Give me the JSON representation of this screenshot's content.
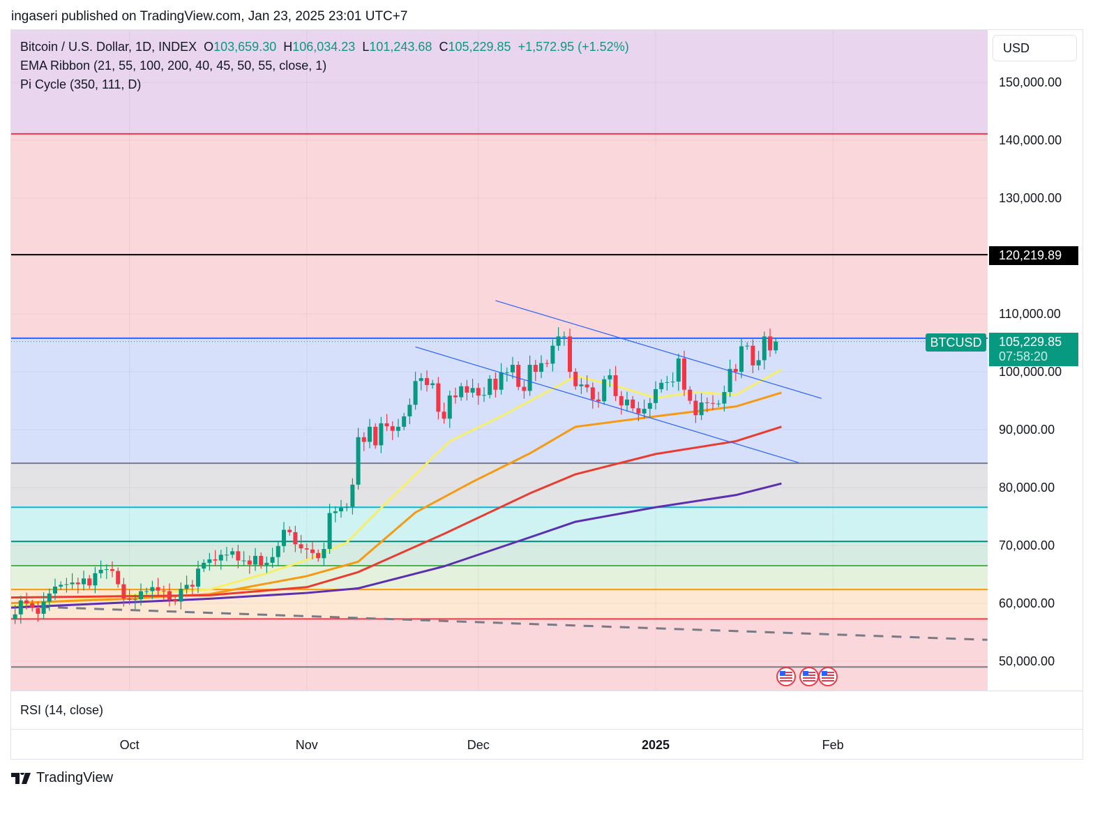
{
  "header": {
    "published": "ingaseri published on TradingView.com, Jan 23, 2025 23:01 UTC+7"
  },
  "legend": {
    "symbol": "Bitcoin / U.S. Dollar, 1D, INDEX",
    "o_label": "O",
    "o": "103,659.30",
    "h_label": "H",
    "h": "106,034.23",
    "l_label": "L",
    "l": "101,243.68",
    "c_label": "C",
    "c": "105,229.85",
    "change": "+1,572.95 (+1.52%)",
    "ema": "EMA Ribbon (21, 55, 100, 200, 40, 45, 50, 55, close, 1)",
    "pi": "Pi Cycle (350, 111, D)"
  },
  "currency": "USD",
  "rsi_label": "RSI (14, close)",
  "brand": "TradingView",
  "price_label": {
    "level": "120,219.89",
    "symbol": "BTCUSD",
    "price": "105,229.85",
    "countdown": "07:58:20"
  },
  "colors": {
    "up": "#089981",
    "down": "#f23645",
    "ema21": "#f7ef6a",
    "ema55": "#f59a12",
    "ema100": "#ea3b2f",
    "ema200": "#5b2fb0",
    "trend": "#2962ff"
  },
  "chart_data": {
    "type": "candlestick",
    "interval": "1D",
    "ylim": [
      45000,
      157000
    ],
    "y_ticks": [
      "150,000.00",
      "140,000.00",
      "130,000.00",
      "120,000.00",
      "110,000.00",
      "100,000.00",
      "90,000.00",
      "80,000.00",
      "70,000.00",
      "60,000.00",
      "50,000.00"
    ],
    "y_tick_values": [
      150000,
      140000,
      130000,
      120000,
      110000,
      100000,
      90000,
      80000,
      70000,
      60000,
      50000
    ],
    "x_ticks": [
      {
        "label": "Oct",
        "date": "2024-10-01"
      },
      {
        "label": "Nov",
        "date": "2024-11-01"
      },
      {
        "label": "Dec",
        "date": "2024-12-01"
      },
      {
        "label": "2025",
        "date": "2025-01-01",
        "bold": true
      },
      {
        "label": "Feb",
        "date": "2025-02-01"
      }
    ],
    "start_date": "2024-09-09",
    "first_open": 58000,
    "closes": [
      57600,
      57300,
      58100,
      60500,
      60000,
      59200,
      58200,
      60300,
      61700,
      62900,
      63200,
      63300,
      63600,
      63300,
      64300,
      63100,
      65200,
      65800,
      65900,
      65600,
      63300,
      60800,
      60600,
      60700,
      62100,
      62100,
      62800,
      62200,
      62100,
      60600,
      60300,
      62500,
      63200,
      62900,
      66000,
      67000,
      67600,
      67400,
      68400,
      68400,
      69000,
      67400,
      67400,
      66700,
      68200,
      66600,
      67000,
      68000,
      69900,
      72700,
      72300,
      70200,
      69500,
      69300,
      68700,
      67800,
      69400,
      75600,
      75900,
      76500,
      76700,
      80500,
      88700,
      87900,
      90500,
      87300,
      91100,
      90600,
      89800,
      90500,
      92300,
      94300,
      98400,
      98900,
      97700,
      98000,
      93100,
      91900,
      95900,
      95600,
      97500,
      96400,
      97200,
      95900,
      96000,
      98800,
      96900,
      99900,
      99900,
      101200,
      97400,
      96700,
      101200,
      100000,
      101500,
      101400,
      104500,
      106100,
      106100,
      100000,
      97500,
      97800,
      97300,
      95200,
      94900,
      98700,
      99400,
      95800,
      94200,
      95200,
      93700,
      92800,
      93600,
      94600,
      97000,
      98100,
      98200,
      98300,
      102300,
      96900,
      95000,
      92500,
      94700,
      94600,
      94500,
      94500,
      96500,
      100500,
      100000,
      104400,
      104500,
      101100,
      102000,
      106100,
      103700,
      105229.85
    ],
    "ema_ribbon": [
      {
        "period": 21,
        "points": [
          [
            "2024-09-09",
            59400
          ],
          [
            "2024-10-01",
            61500
          ],
          [
            "2024-10-15",
            62400
          ],
          [
            "2024-10-25",
            65200
          ],
          [
            "2024-11-01",
            67500
          ],
          [
            "2024-11-08",
            70500
          ],
          [
            "2024-11-13",
            75500
          ],
          [
            "2024-11-20",
            82300
          ],
          [
            "2024-11-26",
            88000
          ],
          [
            "2024-12-05",
            92300
          ],
          [
            "2024-12-15",
            97600
          ],
          [
            "2024-12-18",
            99300
          ],
          [
            "2024-12-25",
            97600
          ],
          [
            "2025-01-01",
            95500
          ],
          [
            "2025-01-08",
            96500
          ],
          [
            "2025-01-15",
            96000
          ],
          [
            "2025-01-23",
            100400
          ]
        ]
      },
      {
        "period": 55,
        "points": [
          [
            "2024-09-09",
            60000
          ],
          [
            "2024-10-01",
            60800
          ],
          [
            "2024-10-15",
            61600
          ],
          [
            "2024-11-01",
            64700
          ],
          [
            "2024-11-10",
            67200
          ],
          [
            "2024-11-20",
            75700
          ],
          [
            "2024-11-30",
            81000
          ],
          [
            "2024-12-10",
            85900
          ],
          [
            "2024-12-18",
            90500
          ],
          [
            "2025-01-01",
            92300
          ],
          [
            "2025-01-15",
            94000
          ],
          [
            "2025-01-23",
            96400
          ]
        ]
      },
      {
        "period": 100,
        "points": [
          [
            "2024-09-09",
            61000
          ],
          [
            "2024-10-15",
            61400
          ],
          [
            "2024-11-01",
            62800
          ],
          [
            "2024-11-10",
            65400
          ],
          [
            "2024-11-25",
            72000
          ],
          [
            "2024-12-10",
            79000
          ],
          [
            "2024-12-18",
            82300
          ],
          [
            "2025-01-01",
            85800
          ],
          [
            "2025-01-15",
            88000
          ],
          [
            "2025-01-23",
            90500
          ]
        ]
      },
      {
        "period": 200,
        "points": [
          [
            "2024-09-09",
            59200
          ],
          [
            "2024-10-15",
            60800
          ],
          [
            "2024-11-01",
            61800
          ],
          [
            "2024-11-10",
            62600
          ],
          [
            "2024-11-25",
            66400
          ],
          [
            "2024-12-10",
            71400
          ],
          [
            "2024-12-18",
            74100
          ],
          [
            "2025-01-01",
            76600
          ],
          [
            "2025-01-15",
            78700
          ],
          [
            "2025-01-23",
            80700
          ]
        ]
      }
    ],
    "pi_cycle_levels": [
      {
        "price": 141100,
        "color": "#f23645"
      },
      {
        "price": 120219.89,
        "color": "#000000"
      },
      {
        "price": 105800,
        "color": "#2962ff"
      },
      {
        "price": 84200,
        "color": "#787b86"
      },
      {
        "price": 76600,
        "color": "#00bcd4"
      },
      {
        "price": 70700,
        "color": "#00897b"
      },
      {
        "price": 66500,
        "color": "#4caf50"
      },
      {
        "price": 62400,
        "color": "#ff9800"
      },
      {
        "price": 57300,
        "color": "#f23645"
      },
      {
        "price": 49000,
        "color": "#787b86"
      }
    ],
    "bands": [
      {
        "from": 141100,
        "to": 160000,
        "color": "#ead5ee"
      },
      {
        "from": 105800,
        "to": 141100,
        "color": "#fad7db"
      },
      {
        "from": 84200,
        "to": 105800,
        "color": "#d6e0fb"
      },
      {
        "from": 76600,
        "to": 84200,
        "color": "#e3e3e5"
      },
      {
        "from": 70700,
        "to": 76600,
        "color": "#cff2f3"
      },
      {
        "from": 66500,
        "to": 70700,
        "color": "#d6ece2"
      },
      {
        "from": 62400,
        "to": 66500,
        "color": "#e4f1dc"
      },
      {
        "from": 57300,
        "to": 62400,
        "color": "#fde8d3"
      },
      {
        "from": 40000,
        "to": 57300,
        "color": "#fad7db"
      }
    ],
    "dashed_line": [
      [
        "2024-09-09",
        59600
      ],
      [
        "2025-02-28",
        53700
      ]
    ],
    "trendlines": [
      [
        [
          "2024-12-04",
          112300
        ],
        [
          "2025-01-30",
          95400
        ]
      ],
      [
        [
          "2024-11-20",
          104300
        ],
        [
          "2025-01-26",
          84300
        ]
      ]
    ],
    "events": [
      "us-flag-icon",
      "us-flag-icon",
      "us-flag-icon"
    ]
  }
}
